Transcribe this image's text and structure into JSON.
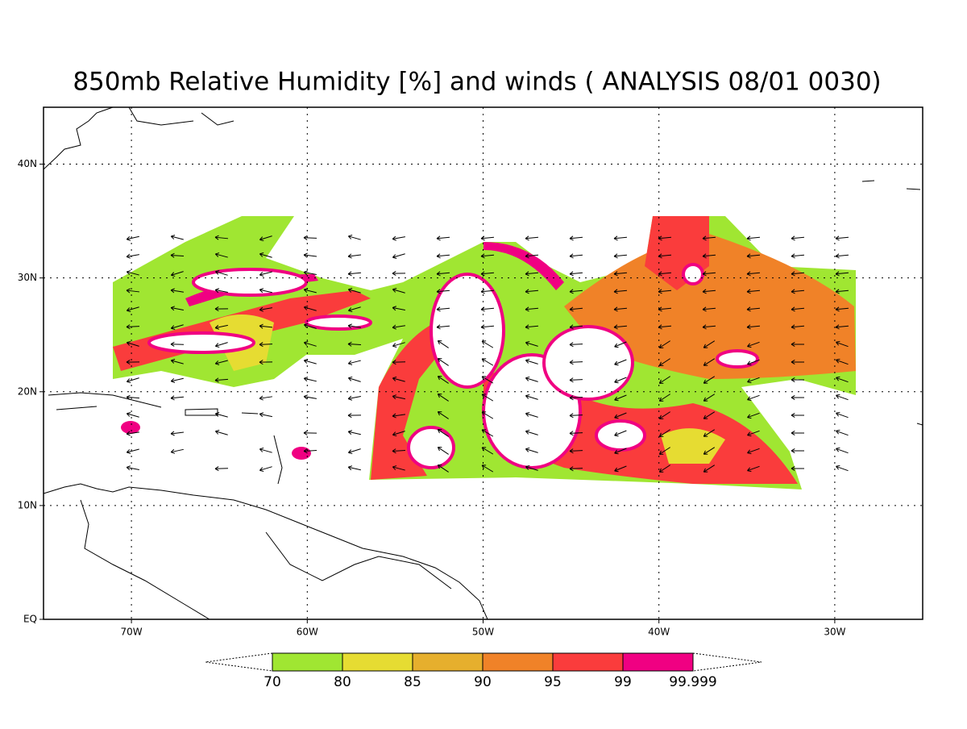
{
  "title": "850mb Relative Humidity [%] and winds ( ANALYSIS 08/01 0030)",
  "map": {
    "xlim": [
      -75,
      -25
    ],
    "ylim": [
      0,
      45
    ],
    "grid": true,
    "xticks": [
      {
        "value": -70,
        "label": "70W"
      },
      {
        "value": -60,
        "label": "60W"
      },
      {
        "value": -50,
        "label": "50W"
      },
      {
        "value": -40,
        "label": "40W"
      },
      {
        "value": -30,
        "label": "30W"
      }
    ],
    "yticks": [
      {
        "value": 0,
        "label": "EQ"
      },
      {
        "value": 10,
        "label": "10N"
      },
      {
        "value": 20,
        "label": "20N"
      },
      {
        "value": 30,
        "label": "30N"
      },
      {
        "value": 40,
        "label": "40N"
      }
    ]
  },
  "colorbar": {
    "levels": [
      70,
      80,
      85,
      90,
      95,
      99,
      99.999
    ],
    "colors": [
      "#a0e632",
      "#e6dc32",
      "#e6af2d",
      "#f08228",
      "#fa3c3c",
      "#f00082"
    ]
  }
}
